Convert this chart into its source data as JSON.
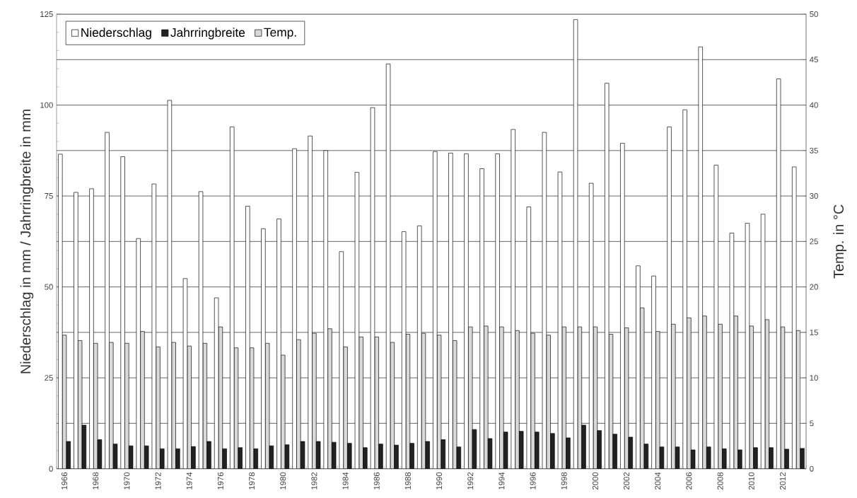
{
  "chart_data": {
    "type": "bar",
    "ylabel": "Niederschlag in mm / Jahrringbreite in mm",
    "y2label": "Temp. in °C",
    "categories": [
      "1966",
      null,
      "1968",
      null,
      "1970",
      null,
      "1972",
      null,
      "1974",
      null,
      "1976",
      null,
      "1978",
      null,
      "1980",
      null,
      "1982",
      null,
      "1984",
      null,
      "1986",
      null,
      "1988",
      null,
      "1990",
      null,
      "1992",
      null,
      "1994",
      null,
      "1996",
      null,
      "1998",
      null,
      "2000",
      null,
      "2002",
      null,
      "2004",
      null,
      "2006",
      null,
      "2008",
      null,
      "2010",
      null,
      "2012",
      null
    ],
    "series": [
      {
        "name": "Niederschlag",
        "color": "#ffffff",
        "values": [
          86.5,
          76,
          77,
          92.5,
          85.8,
          63.3,
          78.3,
          101.3,
          52.3,
          76.2,
          47,
          94,
          72.2,
          66,
          68.7,
          88,
          91.5,
          87.5,
          59.7,
          81.5,
          99.3,
          111.3,
          65.2,
          66.8,
          87.2,
          86.8,
          86.6,
          82.5,
          86.6,
          93.3,
          72,
          92.5,
          81.6,
          123.5,
          78.5,
          106,
          89.5,
          55.8,
          53,
          94,
          98.7,
          116,
          83.5,
          64.8,
          67.5,
          70,
          107.2,
          83
        ]
      },
      {
        "name": "Jahrringbreite",
        "color": "#222222",
        "values": [
          7.5,
          12,
          8,
          6.8,
          6.3,
          6.3,
          5.5,
          5.5,
          6.1,
          7.5,
          5.5,
          5.8,
          5.5,
          6.3,
          6.6,
          7.5,
          7.5,
          7.3,
          7,
          5.8,
          6.8,
          6.5,
          7,
          7.5,
          8,
          6,
          10.8,
          8.3,
          10.1,
          10.3,
          10.1,
          9.7,
          8.5,
          12,
          10.5,
          9.5,
          8.7,
          6.8,
          6,
          6,
          5.2,
          6,
          5.5,
          5.2,
          5.8,
          5.8,
          5.4,
          5.6
        ]
      },
      {
        "name": "Temp.",
        "color": "#d9d9d9",
        "axis": "y2",
        "values": [
          14.7,
          14.1,
          13.8,
          13.9,
          13.8,
          15.1,
          13.4,
          13.9,
          13.5,
          13.8,
          15.6,
          13.3,
          13.3,
          13.8,
          12.5,
          14.2,
          14.9,
          15.4,
          13.4,
          14.5,
          14.5,
          13.9,
          14.8,
          14.9,
          14.7,
          14.1,
          15.6,
          15.7,
          15.6,
          15.2,
          14.9,
          14.7,
          15.6,
          15.6,
          15.6,
          14.8,
          15.5,
          17.7,
          15.1,
          15.9,
          16.6,
          16.8,
          15.9,
          16.8,
          15.7,
          16.4,
          15.6,
          15.2
        ]
      }
    ],
    "ylim": [
      0,
      125
    ],
    "yticks": [
      0,
      25,
      50,
      75,
      100,
      125
    ],
    "y2lim": [
      0,
      50
    ],
    "y2ticks": [
      0,
      5,
      10,
      15,
      20,
      25,
      30,
      35,
      40,
      45,
      50
    ],
    "grid": "y",
    "legend": "top left"
  }
}
